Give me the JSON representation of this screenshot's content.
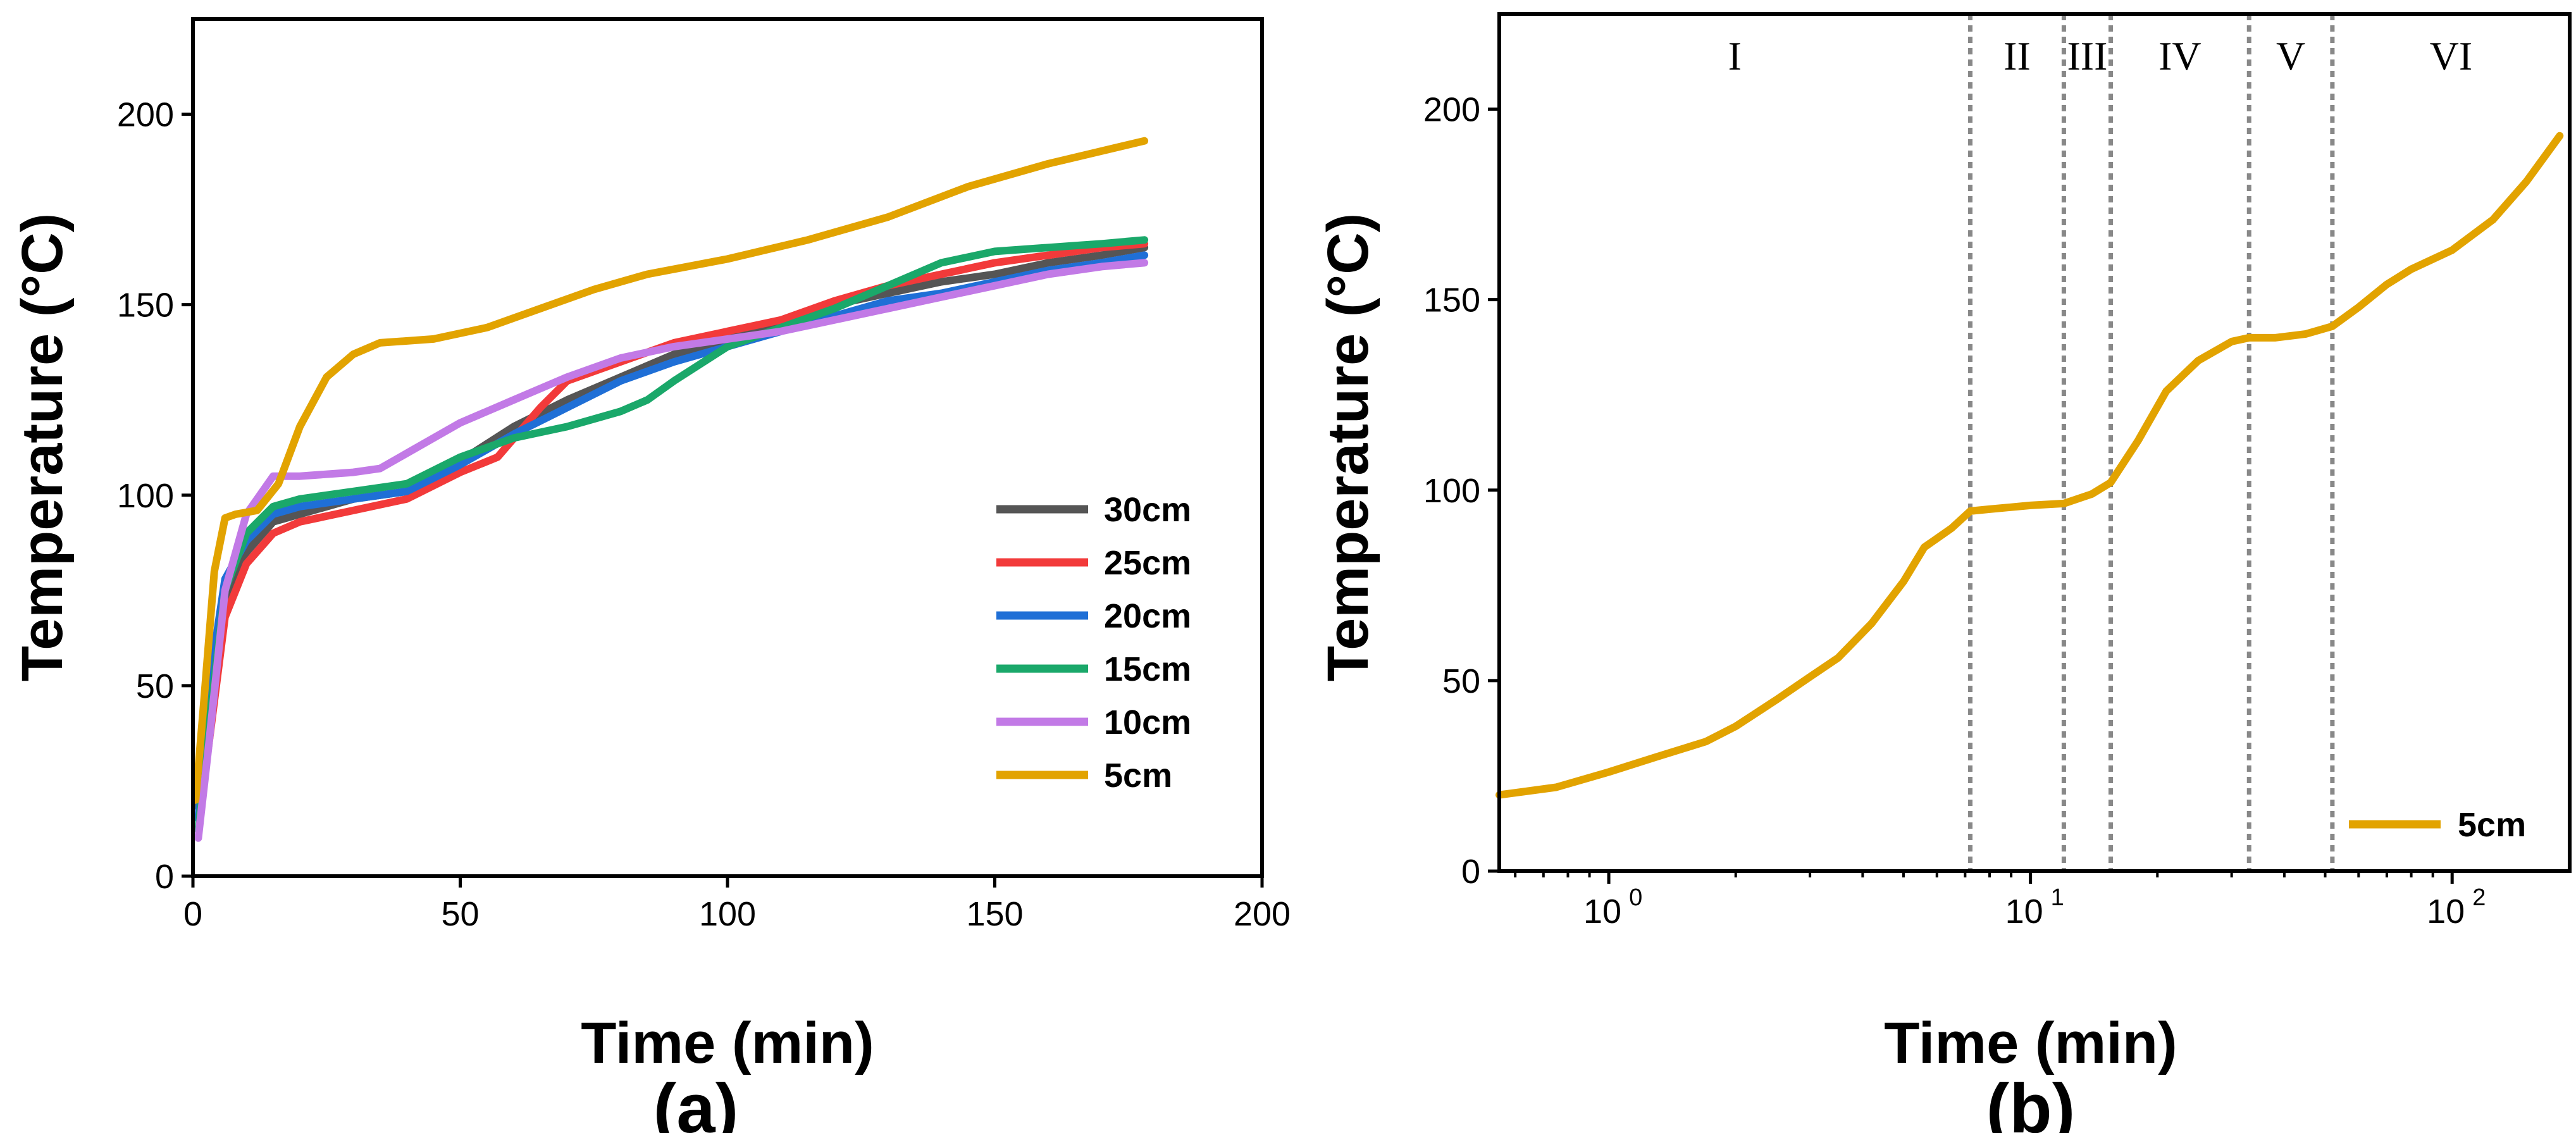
{
  "chart_data": [
    {
      "panel": "(a)",
      "type": "line",
      "xlabel": "Time (min)",
      "ylabel": "Temperature (°C)",
      "xlim": [
        0,
        200
      ],
      "ylim": [
        0,
        225
      ],
      "xticks": [
        0,
        50,
        100,
        150,
        200
      ],
      "yticks": [
        0,
        50,
        100,
        150,
        200
      ],
      "legend_position": "right-center",
      "series": [
        {
          "name": "30cm",
          "color": "#555555",
          "x": [
            1,
            3,
            6,
            10,
            15,
            20,
            30,
            40,
            50,
            60,
            70,
            80,
            90,
            100,
            110,
            120,
            130,
            140,
            150,
            160,
            170,
            178
          ],
          "y": [
            18,
            40,
            70,
            85,
            93,
            95,
            99,
            101,
            109,
            118,
            125,
            131,
            137,
            141,
            145,
            150,
            153,
            156,
            158,
            161,
            163,
            165
          ]
        },
        {
          "name": "25cm",
          "color": "#f23a3a",
          "x": [
            1,
            3,
            6,
            10,
            15,
            20,
            30,
            40,
            50,
            57,
            65,
            70,
            80,
            90,
            100,
            110,
            120,
            130,
            140,
            150,
            160,
            170,
            178
          ],
          "y": [
            15,
            35,
            68,
            82,
            90,
            93,
            96,
            99,
            106,
            110,
            123,
            130,
            135,
            140,
            143,
            146,
            151,
            155,
            158,
            161,
            163,
            165,
            166
          ]
        },
        {
          "name": "20cm",
          "color": "#1f6fd6",
          "x": [
            1,
            3,
            6,
            10,
            15,
            20,
            30,
            40,
            50,
            60,
            70,
            80,
            90,
            100,
            110,
            120,
            130,
            140,
            150,
            160,
            170,
            178
          ],
          "y": [
            15,
            50,
            78,
            88,
            95,
            97,
            99,
            101,
            108,
            116,
            123,
            130,
            135,
            139,
            143,
            147,
            151,
            153,
            156,
            159,
            161,
            163
          ]
        },
        {
          "name": "15cm",
          "color": "#1aa86a",
          "x": [
            1,
            3,
            6,
            10,
            15,
            20,
            30,
            40,
            50,
            60,
            70,
            80,
            85,
            90,
            100,
            110,
            120,
            130,
            140,
            150,
            160,
            170,
            178
          ],
          "y": [
            12,
            40,
            75,
            90,
            97,
            99,
            101,
            103,
            110,
            115,
            118,
            122,
            125,
            130,
            139,
            144,
            149,
            155,
            161,
            164,
            165,
            166,
            167
          ]
        },
        {
          "name": "10cm",
          "color": "#c27ae6",
          "x": [
            1,
            3,
            6,
            10,
            15,
            20,
            30,
            35,
            40,
            50,
            60,
            70,
            80,
            90,
            100,
            110,
            120,
            130,
            140,
            150,
            160,
            170,
            178
          ],
          "y": [
            10,
            35,
            75,
            95,
            105,
            105,
            106,
            107,
            111,
            119,
            125,
            131,
            136,
            139,
            141,
            143,
            146,
            149,
            152,
            155,
            158,
            160,
            161
          ]
        },
        {
          "name": "5cm",
          "color": "#e2a300",
          "x": [
            0.5,
            2,
            4,
            6,
            8,
            12,
            16,
            20,
            25,
            30,
            35,
            45,
            55,
            65,
            75,
            85,
            100,
            115,
            130,
            145,
            160,
            178
          ],
          "y": [
            20,
            45,
            80,
            94,
            95,
            96,
            103,
            118,
            131,
            137,
            140,
            141,
            144,
            149,
            154,
            158,
            162,
            167,
            173,
            181,
            187,
            193
          ]
        }
      ]
    },
    {
      "panel": "(b)",
      "type": "line",
      "xscale": "log",
      "xlabel": "Time (min)",
      "ylabel": "Temperature (°C)",
      "xlim": [
        0.55,
        190
      ],
      "ylim": [
        0,
        225
      ],
      "xticks": [
        {
          "base": "10",
          "exp": "0",
          "value": 1
        },
        {
          "base": "10",
          "exp": "1",
          "value": 10
        },
        {
          "base": "10",
          "exp": "2",
          "value": 100
        }
      ],
      "yticks": [
        0,
        50,
        100,
        150,
        200
      ],
      "legend_position": "bottom-right",
      "regions": [
        {
          "label": "I",
          "from": 0.55,
          "to": 7.2
        },
        {
          "label": "II",
          "from": 7.2,
          "to": 12
        },
        {
          "label": "III",
          "from": 12,
          "to": 15.5
        },
        {
          "label": "IV",
          "from": 15.5,
          "to": 33
        },
        {
          "label": "V",
          "from": 33,
          "to": 52
        },
        {
          "label": "VI",
          "from": 52,
          "to": 190
        }
      ],
      "series": [
        {
          "name": "5cm",
          "color": "#e2a300",
          "x": [
            0.55,
            0.75,
            1,
            1.3,
            1.7,
            2,
            2.5,
            3,
            3.5,
            4.2,
            5,
            5.6,
            6.5,
            7.2,
            8,
            10,
            12,
            14,
            15.5,
            18,
            21,
            25,
            30,
            33,
            38,
            45,
            52,
            60,
            70,
            80,
            100,
            125,
            150,
            180
          ],
          "y": [
            20,
            22,
            26,
            30,
            34,
            38,
            45,
            51,
            56,
            65,
            76,
            85,
            90,
            94.5,
            95,
            96,
            96.5,
            99,
            102,
            113,
            126,
            134,
            139,
            140,
            140,
            141,
            143,
            148,
            154,
            158,
            163,
            171,
            181,
            193
          ]
        }
      ]
    }
  ]
}
